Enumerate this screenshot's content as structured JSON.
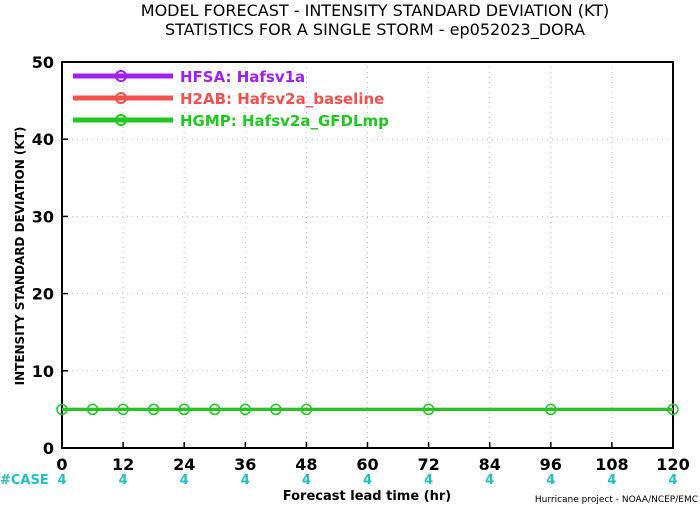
{
  "chart_data": {
    "type": "line",
    "title": "MODEL FORECAST - INTENSITY STANDARD DEVIATION (KT)",
    "subtitle": "STATISTICS FOR A SINGLE STORM - ep052023_DORA",
    "ylabel": "INTENSITY STANDARD DEVIATION (KT)",
    "xlabel": "Forecast lead time (hr)",
    "credit": "Hurricane project - NOAA/NCEP/EMC",
    "xlim": [
      0,
      120
    ],
    "ylim": [
      0,
      50
    ],
    "xticks": [
      0,
      12,
      24,
      36,
      48,
      60,
      72,
      84,
      96,
      108,
      120
    ],
    "yticks": [
      0,
      10,
      20,
      30,
      40,
      50
    ],
    "grid": true,
    "legend_position": "top-left",
    "series": [
      {
        "name": "HFSA: Hafsv1a",
        "color": "#a020f0",
        "x": [
          0,
          6,
          12,
          18,
          24,
          30,
          36,
          42,
          48,
          72,
          96,
          120
        ],
        "y": [
          5,
          5,
          5,
          5,
          5,
          5,
          5,
          5,
          5,
          5,
          5,
          5
        ]
      },
      {
        "name": "H2AB: Hafsv2a_baseline",
        "color": "#f5504b",
        "x": [
          0,
          6,
          12,
          18,
          24,
          30,
          36,
          42,
          48,
          72,
          96,
          120
        ],
        "y": [
          5,
          5,
          5,
          5,
          5,
          5,
          5,
          5,
          5,
          5,
          5,
          5
        ]
      },
      {
        "name": "HGMP: Hafsv2a_GFDLmp",
        "color": "#1ec81e",
        "x": [
          0,
          6,
          12,
          18,
          24,
          30,
          36,
          42,
          48,
          72,
          96,
          120
        ],
        "y": [
          5,
          5,
          5,
          5,
          5,
          5,
          5,
          5,
          5,
          5,
          5,
          5
        ]
      }
    ],
    "case_count": {
      "label": "#CASE",
      "color": "#20c0c0",
      "x": [
        0,
        12,
        24,
        36,
        48,
        60,
        72,
        84,
        96,
        108,
        120
      ],
      "values": [
        4,
        4,
        4,
        4,
        4,
        4,
        4,
        4,
        4,
        4,
        4
      ]
    }
  }
}
